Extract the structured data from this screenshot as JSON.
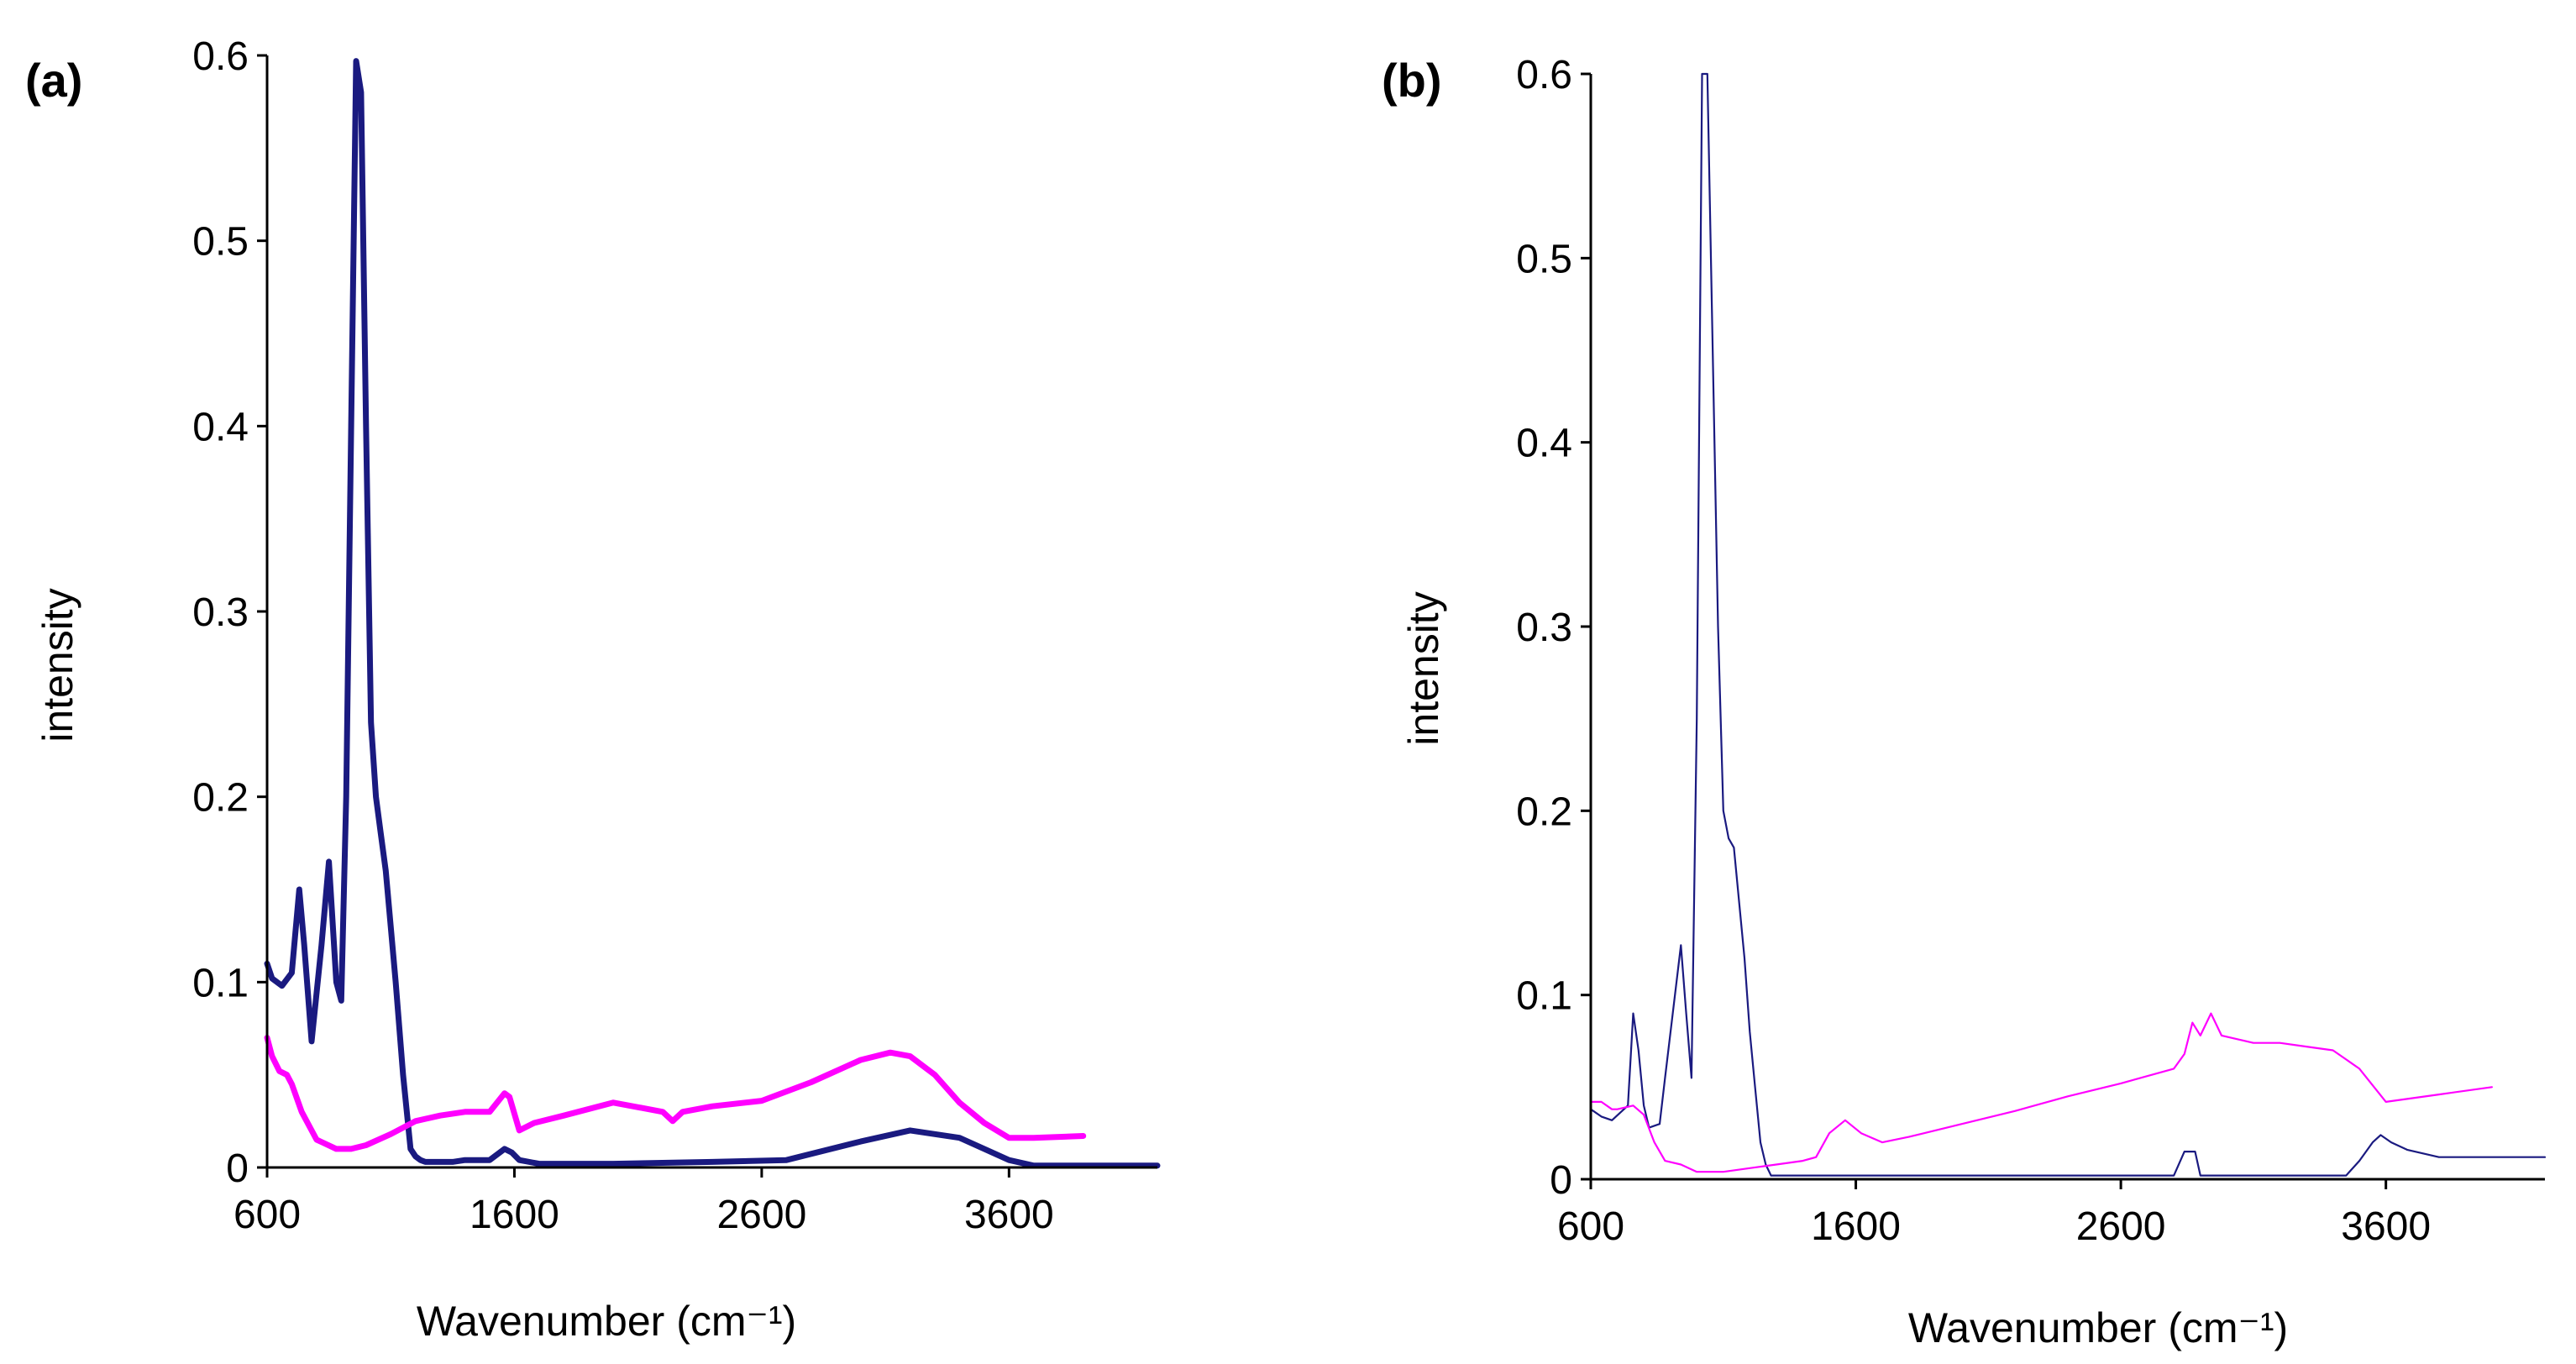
{
  "chart_data": [
    {
      "panel_label": "(a)",
      "type": "line",
      "xlabel": "Wavenumber (cm⁻¹)",
      "ylabel": "intensity",
      "xlim": [
        600,
        4200
      ],
      "ylim": [
        0,
        0.6
      ],
      "xticks": [
        "600",
        "1600",
        "2600",
        "3600"
      ],
      "yticks": [
        "0",
        "0.1",
        "0.2",
        "0.3",
        "0.4",
        "0.5",
        "0.6"
      ],
      "series": [
        {
          "name": "blue",
          "color": "#1a1a80",
          "x": [
            600,
            620,
            660,
            700,
            730,
            750,
            780,
            820,
            850,
            880,
            900,
            920,
            940,
            960,
            980,
            1000,
            1020,
            1040,
            1060,
            1080,
            1100,
            1120,
            1150,
            1180,
            1200,
            1220,
            1240,
            1260,
            1280,
            1300,
            1350,
            1400,
            1500,
            1560,
            1590,
            1620,
            1700,
            2000,
            2400,
            2700,
            3000,
            3200,
            3400,
            3500,
            3600,
            3700,
            4200
          ],
          "y": [
            0.11,
            0.102,
            0.098,
            0.105,
            0.15,
            0.12,
            0.068,
            0.12,
            0.165,
            0.1,
            0.09,
            0.2,
            0.4,
            0.597,
            0.58,
            0.4,
            0.24,
            0.2,
            0.18,
            0.16,
            0.13,
            0.1,
            0.05,
            0.01,
            0.006,
            0.004,
            0.003,
            0.003,
            0.003,
            0.003,
            0.003,
            0.004,
            0.004,
            0.01,
            0.008,
            0.004,
            0.002,
            0.002,
            0.003,
            0.004,
            0.014,
            0.02,
            0.016,
            0.01,
            0.004,
            0.001,
            0.001
          ]
        },
        {
          "name": "magenta",
          "color": "#ff00ff",
          "x": [
            600,
            620,
            650,
            680,
            700,
            740,
            800,
            880,
            940,
            1000,
            1100,
            1200,
            1300,
            1400,
            1500,
            1560,
            1580,
            1620,
            1680,
            1800,
            2000,
            2200,
            2240,
            2280,
            2400,
            2600,
            2800,
            3000,
            3120,
            3200,
            3300,
            3400,
            3500,
            3600,
            3700,
            3900
          ],
          "y": [
            0.07,
            0.06,
            0.052,
            0.05,
            0.045,
            0.03,
            0.015,
            0.01,
            0.01,
            0.012,
            0.018,
            0.025,
            0.028,
            0.03,
            0.03,
            0.04,
            0.038,
            0.02,
            0.024,
            0.028,
            0.035,
            0.03,
            0.025,
            0.03,
            0.033,
            0.036,
            0.046,
            0.058,
            0.062,
            0.06,
            0.05,
            0.035,
            0.024,
            0.016,
            0.016,
            0.017
          ]
        }
      ]
    },
    {
      "panel_label": "(b)",
      "type": "line",
      "xlabel": "Wavenumber (cm⁻¹)",
      "ylabel": "intensity",
      "xlim": [
        600,
        4200
      ],
      "ylim": [
        0,
        0.6
      ],
      "xticks": [
        "600",
        "1600",
        "2600",
        "3600"
      ],
      "yticks": [
        "0",
        "0.1",
        "0.2",
        "0.3",
        "0.4",
        "0.5",
        "0.6"
      ],
      "series": [
        {
          "name": "blue",
          "color": "#1a1a80",
          "x": [
            600,
            640,
            680,
            740,
            760,
            780,
            800,
            820,
            860,
            880,
            940,
            960,
            980,
            1000,
            1020,
            1040,
            1080,
            1100,
            1120,
            1140,
            1160,
            1180,
            1200,
            1220,
            1240,
            1260,
            1280,
            1300,
            1350,
            1400,
            1500,
            1600,
            1700,
            1800,
            2000,
            2400,
            2800,
            2840,
            2880,
            2900,
            2950,
            3000,
            3300,
            3450,
            3500,
            3550,
            3580,
            3620,
            3680,
            3800,
            4200
          ],
          "y": [
            0.038,
            0.034,
            0.032,
            0.04,
            0.09,
            0.07,
            0.04,
            0.028,
            0.03,
            0.055,
            0.127,
            0.09,
            0.055,
            0.25,
            0.6,
            0.6,
            0.3,
            0.2,
            0.185,
            0.18,
            0.15,
            0.12,
            0.08,
            0.05,
            0.02,
            0.008,
            0.002,
            0.002,
            0.002,
            0.002,
            0.002,
            0.002,
            0.002,
            0.002,
            0.002,
            0.002,
            0.002,
            0.015,
            0.015,
            0.002,
            0.002,
            0.002,
            0.002,
            0.002,
            0.01,
            0.02,
            0.024,
            0.02,
            0.016,
            0.012,
            0.012
          ]
        },
        {
          "name": "magenta",
          "color": "#ff00ff",
          "x": [
            600,
            640,
            680,
            700,
            760,
            800,
            840,
            880,
            940,
            1000,
            1100,
            1200,
            1300,
            1400,
            1450,
            1500,
            1560,
            1620,
            1700,
            1800,
            2000,
            2200,
            2400,
            2600,
            2800,
            2840,
            2870,
            2900,
            2940,
            2980,
            3100,
            3200,
            3300,
            3400,
            3500,
            3600,
            3800,
            4000
          ],
          "y": [
            0.042,
            0.042,
            0.038,
            0.038,
            0.04,
            0.035,
            0.02,
            0.01,
            0.008,
            0.004,
            0.004,
            0.006,
            0.008,
            0.01,
            0.012,
            0.025,
            0.032,
            0.025,
            0.02,
            0.023,
            0.03,
            0.037,
            0.045,
            0.052,
            0.06,
            0.068,
            0.085,
            0.078,
            0.09,
            0.078,
            0.074,
            0.074,
            0.072,
            0.07,
            0.06,
            0.042,
            0.046,
            0.05
          ]
        }
      ]
    }
  ]
}
